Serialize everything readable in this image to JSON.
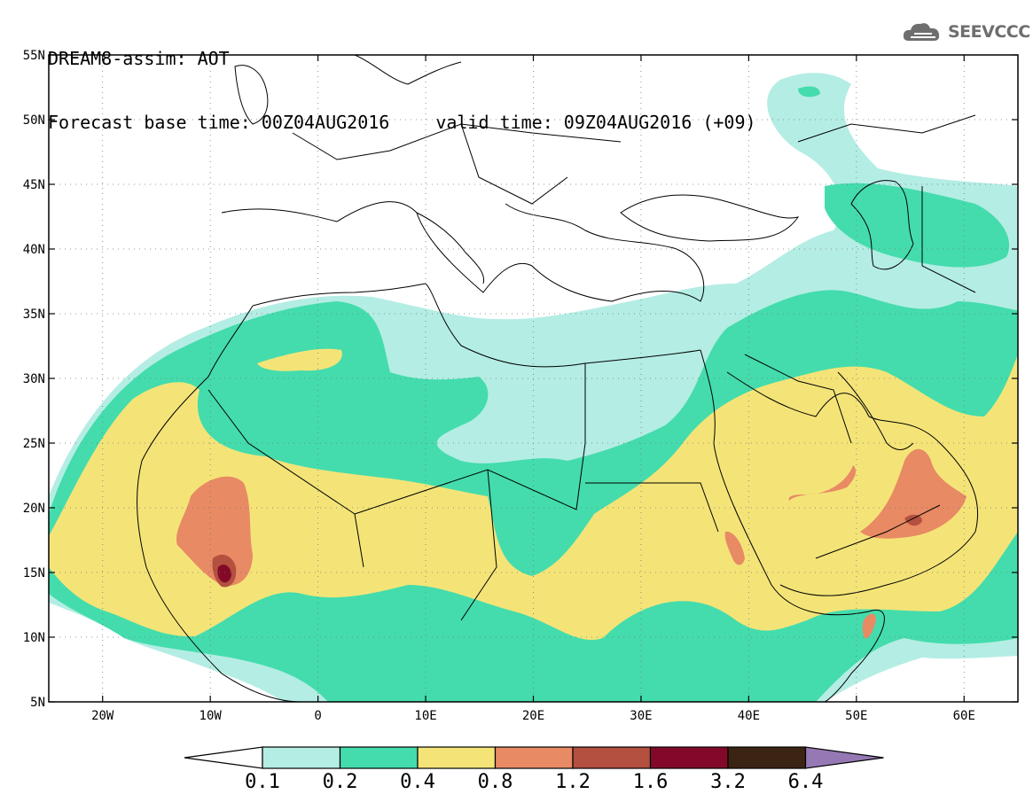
{
  "title": {
    "line1": "DREAM8-assim: AOT",
    "base_label": "Forecast base time: 00Z04AUG2016",
    "valid_label": "valid time: 09Z04AUG2016 (+09)"
  },
  "logo": {
    "text": "SEEVCCC",
    "icon": "cloud-icon"
  },
  "map": {
    "lat_labels": [
      "55N",
      "50N",
      "45N",
      "40N",
      "35N",
      "30N",
      "25N",
      "20N",
      "15N",
      "10N",
      "5N"
    ],
    "lon_labels": [
      "20W",
      "10W",
      "0",
      "10E",
      "20E",
      "30E",
      "40E",
      "50E",
      "60E"
    ],
    "lon_range": [
      -25,
      65
    ],
    "lat_range": [
      5,
      55
    ]
  },
  "legend": {
    "ticks": [
      "0.1",
      "0.2",
      "0.4",
      "0.8",
      "1.2",
      "1.6",
      "3.2",
      "6.4"
    ],
    "colors": [
      "#ffffff",
      "#b4ede4",
      "#44dcac",
      "#f4e478",
      "#e88a64",
      "#b45040",
      "#820a28",
      "#3c2414",
      "#9678b4"
    ]
  }
}
